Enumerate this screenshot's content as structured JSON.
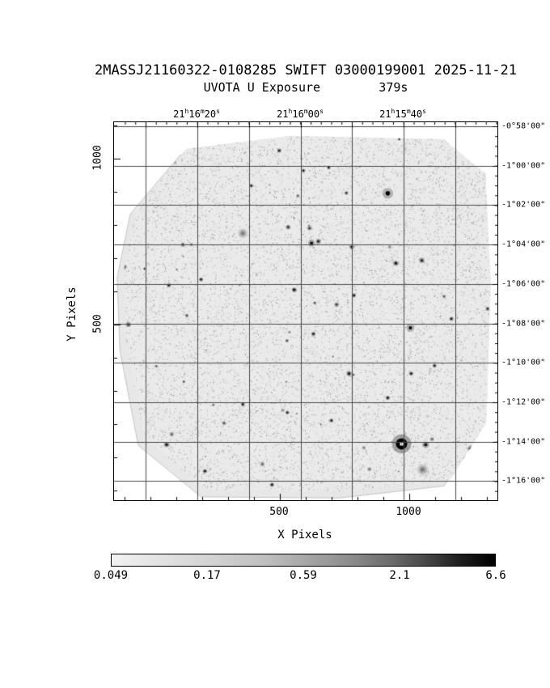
{
  "page": {
    "background": "#ffffff"
  },
  "chart_data": {
    "type": "heatmap",
    "title": "2MASSJ21160322-0108285 SWIFT 03000199001 2025-11-21",
    "subtitle": "UVOTA U Exposure        379s",
    "instrument_label": "UVOTA U Exposure",
    "exposure": "379s",
    "xlabel": "X Pixels",
    "ylabel": "Y Pixels",
    "x_ticks": [
      "500",
      "1000"
    ],
    "y_ticks": [
      "1000",
      "500"
    ],
    "ra_tick_labels": [
      "21h16m20s",
      "21h16m00s",
      "21h15m40s"
    ],
    "dec_tick_labels": [
      "-0°58'00\"",
      "-1°00'00\"",
      "-1°02'00\"",
      "-1°04'00\"",
      "-1°06'00\"",
      "-1°08'00\"",
      "-1°10'00\"",
      "-1°12'00\"",
      "-1°14'00\"",
      "-1°16'00\""
    ],
    "grid": true,
    "colorbar": {
      "scale": "log",
      "tick_labels": [
        "0.049",
        "0.17",
        "0.59",
        "2.1",
        "6.6"
      ]
    },
    "footprint_polygon": [
      [
        0.059,
        0.226
      ],
      [
        0.189,
        0.07
      ],
      [
        0.462,
        0.036
      ],
      [
        0.859,
        0.045
      ],
      [
        0.969,
        0.136
      ],
      [
        0.983,
        0.431
      ],
      [
        0.971,
        0.795
      ],
      [
        0.878,
        0.945
      ],
      [
        0.605,
        0.977
      ],
      [
        0.244,
        0.974
      ],
      [
        0.08,
        0.838
      ],
      [
        0.032,
        0.586
      ],
      [
        0.025,
        0.394
      ]
    ],
    "sources": [
      {
        "x": 0.75,
        "y": 0.851,
        "r": 7.0,
        "t": "sat"
      },
      {
        "x": 0.813,
        "y": 0.853,
        "r": 2.6,
        "t": "pt"
      },
      {
        "x": 0.931,
        "y": 0.864,
        "r": 2.8,
        "t": "pt"
      },
      {
        "x": 0.805,
        "y": 0.919,
        "r": 8.0,
        "t": "fuzzy"
      },
      {
        "x": 0.336,
        "y": 0.294,
        "r": 7.0,
        "t": "fuzzy"
      },
      {
        "x": 0.714,
        "y": 0.188,
        "r": 3.5,
        "t": "halo"
      },
      {
        "x": 0.515,
        "y": 0.32,
        "r": 2.6,
        "t": "pt"
      },
      {
        "x": 0.773,
        "y": 0.544,
        "r": 2.6,
        "t": "halo"
      },
      {
        "x": 0.735,
        "y": 0.373,
        "r": 2.2,
        "t": "pt"
      },
      {
        "x": 0.431,
        "y": 0.075,
        "r": 1.8,
        "t": "pt"
      },
      {
        "x": 0.494,
        "y": 0.128,
        "r": 1.6,
        "t": "pt"
      },
      {
        "x": 0.227,
        "y": 0.416,
        "r": 1.7,
        "t": "pt"
      },
      {
        "x": 0.469,
        "y": 0.443,
        "r": 1.6,
        "t": "pt"
      },
      {
        "x": 0.626,
        "y": 0.458,
        "r": 1.7,
        "t": "pt"
      },
      {
        "x": 0.613,
        "y": 0.665,
        "r": 2.2,
        "t": "pt"
      },
      {
        "x": 0.775,
        "y": 0.665,
        "r": 1.8,
        "t": "pt"
      },
      {
        "x": 0.836,
        "y": 0.644,
        "r": 1.7,
        "t": "pt"
      },
      {
        "x": 0.714,
        "y": 0.729,
        "r": 1.8,
        "t": "pt"
      },
      {
        "x": 0.336,
        "y": 0.746,
        "r": 1.7,
        "t": "pt"
      },
      {
        "x": 0.452,
        "y": 0.768,
        "r": 1.6,
        "t": "pt"
      },
      {
        "x": 0.567,
        "y": 0.789,
        "r": 1.7,
        "t": "pt"
      },
      {
        "x": 0.137,
        "y": 0.853,
        "r": 2.2,
        "t": "pt"
      },
      {
        "x": 0.237,
        "y": 0.923,
        "r": 1.8,
        "t": "pt"
      },
      {
        "x": 0.412,
        "y": 0.959,
        "r": 1.8,
        "t": "pt"
      },
      {
        "x": 0.143,
        "y": 0.431,
        "r": 1.8,
        "t": "pt"
      },
      {
        "x": 0.358,
        "y": 0.168,
        "r": 1.6,
        "t": "pt"
      },
      {
        "x": 0.62,
        "y": 0.33,
        "r": 2.0,
        "t": "pt"
      },
      {
        "x": 0.52,
        "y": 0.56,
        "r": 1.8,
        "t": "pt"
      },
      {
        "x": 0.88,
        "y": 0.52,
        "r": 1.8,
        "t": "pt"
      },
      {
        "x": 0.56,
        "y": 0.12,
        "r": 1.6,
        "t": "pt"
      }
    ],
    "noise": {
      "seed": 7,
      "speckle_count": 26000,
      "dark_speckle_count": 2200,
      "faint_star_count": 70
    }
  }
}
